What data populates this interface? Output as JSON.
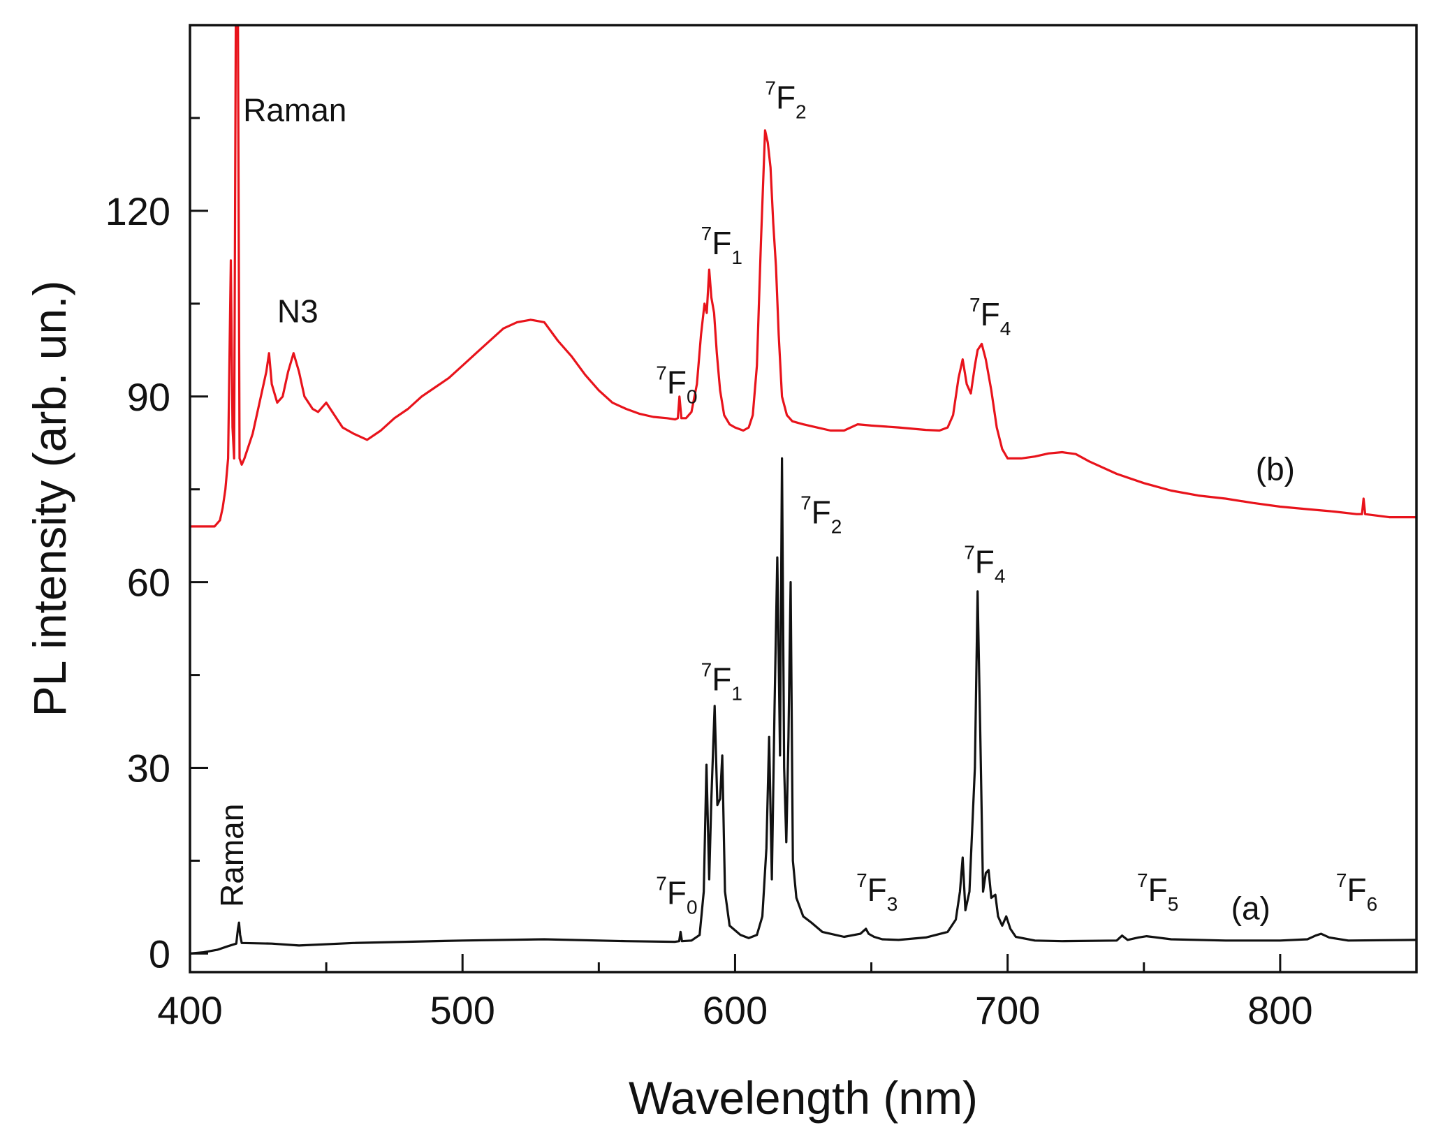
{
  "chart_data": {
    "type": "line",
    "xlabel": "Wavelength (nm)",
    "ylabel": "PL intensity (arb. un.)",
    "xlim": [
      400,
      850
    ],
    "ylim": [
      -3,
      150
    ],
    "x_ticks": [
      400,
      500,
      600,
      700,
      800
    ],
    "x_tick_labels": [
      "400",
      "500",
      "600",
      "700",
      "800"
    ],
    "x_minor_ticks": [
      450,
      550,
      650,
      750
    ],
    "y_ticks": [
      0,
      30,
      60,
      90,
      120
    ],
    "y_tick_labels": [
      "0",
      "30",
      "60",
      "90",
      "120"
    ],
    "y_minor_ticks": [
      15,
      45,
      75,
      105,
      135
    ],
    "grid": false,
    "colors": {
      "a": "#111111",
      "b": "#e8131b",
      "axis": "#111111"
    },
    "series": [
      {
        "name": "(a)",
        "color": "#111111",
        "points": [
          [
            400,
            0
          ],
          [
            405,
            0.2
          ],
          [
            410,
            0.6
          ],
          [
            414,
            1.2
          ],
          [
            417,
            1.6
          ],
          [
            417.6,
            4
          ],
          [
            418,
            5
          ],
          [
            418.4,
            3
          ],
          [
            419,
            1.7
          ],
          [
            430,
            1.6
          ],
          [
            440,
            1.3
          ],
          [
            460,
            1.7
          ],
          [
            500,
            2.1
          ],
          [
            530,
            2.3
          ],
          [
            560,
            2
          ],
          [
            578,
            1.9
          ],
          [
            579.5,
            2
          ],
          [
            580,
            3.5
          ],
          [
            580.5,
            2
          ],
          [
            584,
            2.1
          ],
          [
            587,
            3
          ],
          [
            588.5,
            10
          ],
          [
            589.5,
            30.5
          ],
          [
            590.5,
            12
          ],
          [
            591.3,
            25
          ],
          [
            592.5,
            40
          ],
          [
            593.5,
            24
          ],
          [
            594.5,
            25
          ],
          [
            595.3,
            32
          ],
          [
            596.3,
            10
          ],
          [
            598,
            4.5
          ],
          [
            602,
            3
          ],
          [
            605,
            2.5
          ],
          [
            608,
            3
          ],
          [
            610,
            6
          ],
          [
            611.5,
            17
          ],
          [
            612.5,
            35
          ],
          [
            613.5,
            12
          ],
          [
            614.5,
            40
          ],
          [
            615.5,
            64
          ],
          [
            616.5,
            32
          ],
          [
            617.2,
            80
          ],
          [
            618,
            30
          ],
          [
            618.8,
            18
          ],
          [
            619.6,
            35
          ],
          [
            620.4,
            60
          ],
          [
            621.2,
            15
          ],
          [
            622.5,
            9
          ],
          [
            625,
            6
          ],
          [
            628,
            5
          ],
          [
            632,
            3.5
          ],
          [
            640,
            2.7
          ],
          [
            646,
            3.2
          ],
          [
            648,
            4
          ],
          [
            649,
            3.2
          ],
          [
            651,
            2.7
          ],
          [
            654,
            2.3
          ],
          [
            660,
            2.2
          ],
          [
            670,
            2.6
          ],
          [
            678,
            3.5
          ],
          [
            681,
            5.5
          ],
          [
            682.5,
            10
          ],
          [
            683.5,
            15.5
          ],
          [
            684.5,
            7
          ],
          [
            686,
            10
          ],
          [
            688,
            30
          ],
          [
            689,
            58.5
          ],
          [
            690,
            35
          ],
          [
            691,
            10
          ],
          [
            692,
            13
          ],
          [
            693,
            13.5
          ],
          [
            694,
            9
          ],
          [
            695.5,
            9.5
          ],
          [
            696.5,
            6
          ],
          [
            698,
            4.5
          ],
          [
            699.5,
            6
          ],
          [
            701,
            4
          ],
          [
            703,
            2.7
          ],
          [
            710,
            2.1
          ],
          [
            720,
            2
          ],
          [
            740,
            2.1
          ],
          [
            742,
            2.9
          ],
          [
            744,
            2.2
          ],
          [
            748,
            2.6
          ],
          [
            751,
            2.8
          ],
          [
            760,
            2.3
          ],
          [
            780,
            2.1
          ],
          [
            800,
            2.1
          ],
          [
            810,
            2.3
          ],
          [
            813,
            2.9
          ],
          [
            815,
            3.2
          ],
          [
            818,
            2.6
          ],
          [
            825,
            2.1
          ],
          [
            850,
            2.2
          ]
        ]
      },
      {
        "name": "(b)",
        "color": "#e8131b",
        "points": [
          [
            400,
            69
          ],
          [
            409,
            69
          ],
          [
            411,
            70
          ],
          [
            412,
            72
          ],
          [
            413,
            75
          ],
          [
            414,
            80
          ],
          [
            415,
            112
          ],
          [
            415.6,
            85
          ],
          [
            416.2,
            80
          ],
          [
            416.8,
            150
          ],
          [
            417.6,
            150
          ],
          [
            418.2,
            80
          ],
          [
            419,
            79
          ],
          [
            420,
            80
          ],
          [
            423,
            84
          ],
          [
            426,
            90
          ],
          [
            428,
            94
          ],
          [
            429,
            97
          ],
          [
            430,
            92
          ],
          [
            432,
            89
          ],
          [
            434,
            90
          ],
          [
            436,
            94
          ],
          [
            438,
            97
          ],
          [
            440,
            94
          ],
          [
            442,
            90
          ],
          [
            445,
            88
          ],
          [
            447,
            87.5
          ],
          [
            448,
            88
          ],
          [
            450,
            89
          ],
          [
            453,
            87
          ],
          [
            456,
            85
          ],
          [
            460,
            84
          ],
          [
            465,
            83
          ],
          [
            470,
            84.5
          ],
          [
            475,
            86.5
          ],
          [
            480,
            88
          ],
          [
            485,
            90
          ],
          [
            490,
            91.5
          ],
          [
            495,
            93
          ],
          [
            500,
            95
          ],
          [
            505,
            97
          ],
          [
            510,
            99
          ],
          [
            515,
            101
          ],
          [
            520,
            102
          ],
          [
            525,
            102.4
          ],
          [
            530,
            102
          ],
          [
            535,
            99
          ],
          [
            540,
            96.5
          ],
          [
            545,
            93.5
          ],
          [
            550,
            91
          ],
          [
            555,
            89
          ],
          [
            560,
            88
          ],
          [
            565,
            87.2
          ],
          [
            570,
            86.7
          ],
          [
            575,
            86.5
          ],
          [
            578,
            86.3
          ],
          [
            579,
            86.5
          ],
          [
            579.6,
            90
          ],
          [
            580.3,
            86.5
          ],
          [
            582,
            86.5
          ],
          [
            584,
            87.5
          ],
          [
            586,
            92
          ],
          [
            587.5,
            100
          ],
          [
            588.8,
            105
          ],
          [
            589.6,
            103.5
          ],
          [
            590.5,
            110.5
          ],
          [
            591.3,
            106
          ],
          [
            592.3,
            103.5
          ],
          [
            593.3,
            97
          ],
          [
            594.5,
            91
          ],
          [
            596,
            87
          ],
          [
            598,
            85.5
          ],
          [
            600,
            85
          ],
          [
            603,
            84.5
          ],
          [
            605,
            85
          ],
          [
            606.5,
            87
          ],
          [
            608,
            95
          ],
          [
            609.5,
            115
          ],
          [
            611,
            133
          ],
          [
            612,
            131
          ],
          [
            613,
            127
          ],
          [
            614,
            118
          ],
          [
            615,
            111
          ],
          [
            616,
            100
          ],
          [
            617.2,
            90
          ],
          [
            619,
            87
          ],
          [
            621,
            86
          ],
          [
            625,
            85.5
          ],
          [
            630,
            85
          ],
          [
            635,
            84.5
          ],
          [
            640,
            84.5
          ],
          [
            645,
            85.5
          ],
          [
            650,
            85.3
          ],
          [
            660,
            85
          ],
          [
            670,
            84.6
          ],
          [
            675,
            84.5
          ],
          [
            678,
            85
          ],
          [
            680,
            87
          ],
          [
            682,
            93
          ],
          [
            683.5,
            96
          ],
          [
            685,
            92
          ],
          [
            686.5,
            90.5
          ],
          [
            688,
            95
          ],
          [
            689,
            97.5
          ],
          [
            690.5,
            98.5
          ],
          [
            692,
            96
          ],
          [
            694,
            91
          ],
          [
            696,
            85
          ],
          [
            698,
            81.5
          ],
          [
            700,
            80
          ],
          [
            705,
            80
          ],
          [
            710,
            80.3
          ],
          [
            715,
            80.8
          ],
          [
            720,
            81
          ],
          [
            725,
            80.7
          ],
          [
            730,
            79.5
          ],
          [
            740,
            77.5
          ],
          [
            750,
            76
          ],
          [
            760,
            74.8
          ],
          [
            770,
            74
          ],
          [
            780,
            73.5
          ],
          [
            790,
            72.8
          ],
          [
            800,
            72.2
          ],
          [
            810,
            71.8
          ],
          [
            820,
            71.4
          ],
          [
            828,
            71
          ],
          [
            830,
            71
          ],
          [
            830.6,
            73.5
          ],
          [
            831.2,
            71
          ],
          [
            840,
            70.5
          ],
          [
            850,
            70.5
          ]
        ]
      }
    ],
    "annotations": [
      {
        "base": "Raman",
        "sup": "",
        "sub": "",
        "x": 419.5,
        "y": 134.5
      },
      {
        "base": "N3",
        "sup": "",
        "sub": "",
        "x": 432,
        "y": 102
      },
      {
        "base": "F",
        "sup": "7",
        "sub": "2",
        "x": 611,
        "y": 136.5
      },
      {
        "base": "F",
        "sup": "7",
        "sub": "1",
        "x": 587.5,
        "y": 113
      },
      {
        "base": "F",
        "sup": "7",
        "sub": "0",
        "x": 571,
        "y": 90.5
      },
      {
        "base": "F",
        "sup": "7",
        "sub": "4",
        "x": 686,
        "y": 101.5
      },
      {
        "base": "(b)",
        "sup": "",
        "sub": "",
        "x": 791,
        "y": 76.5
      },
      {
        "base": "F",
        "sup": "7",
        "sub": "2",
        "x": 624,
        "y": 69.5
      },
      {
        "base": "F",
        "sup": "7",
        "sub": "4",
        "x": 684,
        "y": 61.5
      },
      {
        "base": "F",
        "sup": "7",
        "sub": "1",
        "x": 587.5,
        "y": 42.5
      },
      {
        "base": "F",
        "sup": "7",
        "sub": "0",
        "x": 571,
        "y": 8
      },
      {
        "base": "F",
        "sup": "7",
        "sub": "3",
        "x": 644.5,
        "y": 8.5
      },
      {
        "base": "F",
        "sup": "7",
        "sub": "5",
        "x": 747.5,
        "y": 8.5
      },
      {
        "base": "(a)",
        "sup": "",
        "sub": "",
        "x": 782,
        "y": 5.5
      },
      {
        "base": "F",
        "sup": "7",
        "sub": "6",
        "x": 820.5,
        "y": 8.5
      },
      {
        "base": "Raman",
        "sup": "",
        "sub": "",
        "x": 419.5,
        "y": 7.5,
        "rotate": true
      }
    ]
  }
}
